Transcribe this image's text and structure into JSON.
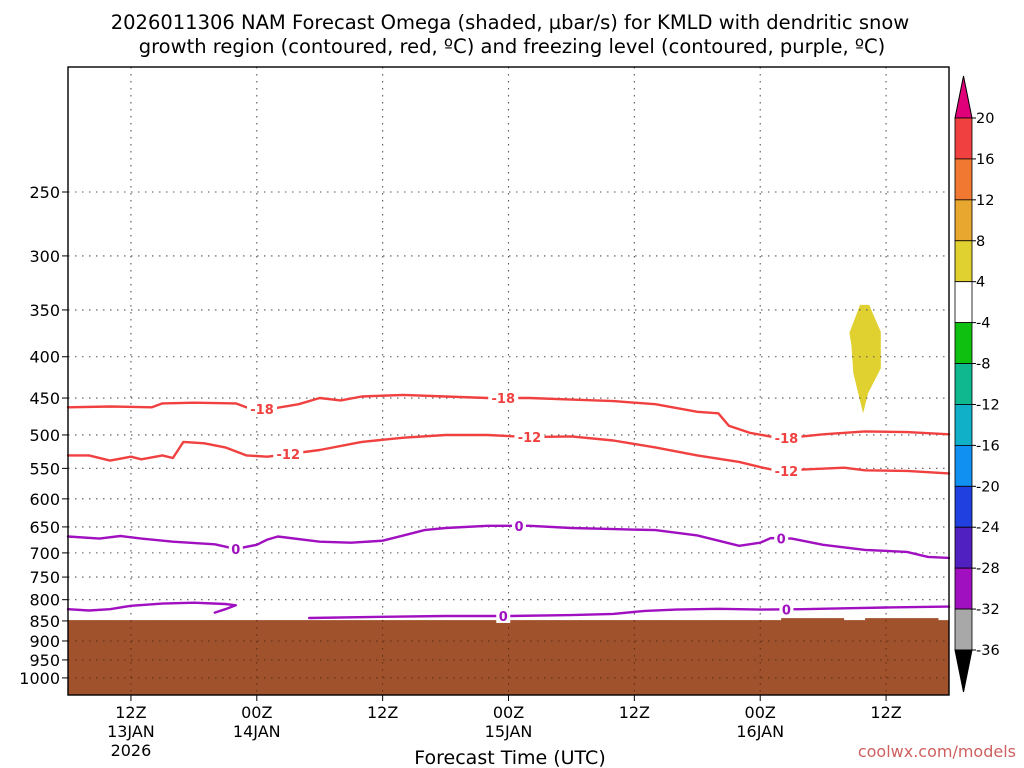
{
  "chart_data": {
    "type": "contour",
    "title_line1": "2026011306 NAM Forecast Omega (shaded, µbar/s) for KMLD with dendritic snow",
    "title_line2": "growth region (contoured, red, ºC) and freezing level (contoured, purple, ºC)",
    "xlabel": "Forecast Time (UTC)",
    "credit": "coolwx.com/models",
    "xlim_hours": [
      0,
      84
    ],
    "ylim_hpa": [
      1050,
      175
    ],
    "pressure_levels": [
      "250",
      "300",
      "350",
      "400",
      "450",
      "500",
      "550",
      "600",
      "650",
      "700",
      "750",
      "800",
      "850",
      "900",
      "950",
      "1000"
    ],
    "x_ticks": [
      {
        "hour": 6,
        "lines": [
          "12Z",
          "13JAN",
          "2026"
        ]
      },
      {
        "hour": 18,
        "lines": [
          "00Z",
          "14JAN"
        ]
      },
      {
        "hour": 30,
        "lines": [
          "12Z"
        ]
      },
      {
        "hour": 42,
        "lines": [
          "00Z",
          "15JAN"
        ]
      },
      {
        "hour": 54,
        "lines": [
          "12Z"
        ]
      },
      {
        "hour": 66,
        "lines": [
          "00Z",
          "16JAN"
        ]
      },
      {
        "hour": 78,
        "lines": [
          "12Z"
        ]
      }
    ],
    "colorbar": {
      "labels": [
        "20",
        "16",
        "12",
        "8",
        "4",
        "-4",
        "-8",
        "-12",
        "-16",
        "-20",
        "-24",
        "-28",
        "-32",
        "-36"
      ],
      "top_color": "#e0007a",
      "bottom_color": "#000000",
      "bins": [
        {
          "range": "16 to 20",
          "color": "#f04040"
        },
        {
          "range": "12 to 16",
          "color": "#f07830"
        },
        {
          "range": "8 to 12",
          "color": "#e8a830"
        },
        {
          "range": "4 to 8",
          "color": "#e0d030"
        },
        {
          "range": "-4 to 4",
          "color": "#ffffff"
        },
        {
          "range": "-8 to -4",
          "color": "#10c010"
        },
        {
          "range": "-12 to -8",
          "color": "#10b890"
        },
        {
          "range": "-16 to -12",
          "color": "#10b0c8"
        },
        {
          "range": "-20 to -16",
          "color": "#1090f0"
        },
        {
          "range": "-24 to -20",
          "color": "#2040e0"
        },
        {
          "range": "-28 to -24",
          "color": "#5020c0"
        },
        {
          "range": "-32 to -28",
          "color": "#a010c0"
        },
        {
          "range": "-36 to -32",
          "color": "#a8a8a8"
        }
      ]
    },
    "omega_features": [
      {
        "label": "4 to 8",
        "color": "#e0d030",
        "hour_range": [
          74.5,
          77.5
        ],
        "hpa_range": [
          345,
          470
        ]
      }
    ],
    "terrain": {
      "color": "#a0522d",
      "top_hpa": 848
    },
    "series": [
      {
        "name": "-18",
        "color": "#f04040",
        "points": [
          [
            0,
            462
          ],
          [
            4,
            461
          ],
          [
            8,
            462
          ],
          [
            9,
            457
          ],
          [
            12,
            456
          ],
          [
            16,
            457
          ],
          [
            17,
            462
          ],
          [
            19,
            465
          ],
          [
            22,
            458
          ],
          [
            24,
            450
          ],
          [
            26,
            453
          ],
          [
            28,
            448
          ],
          [
            32,
            446
          ],
          [
            36,
            448
          ],
          [
            40,
            450
          ],
          [
            44,
            450
          ],
          [
            48,
            452
          ],
          [
            52,
            454
          ],
          [
            56,
            458
          ],
          [
            60,
            468
          ],
          [
            62,
            470
          ],
          [
            63,
            487
          ],
          [
            65,
            497
          ],
          [
            68,
            505
          ],
          [
            70,
            502
          ],
          [
            72,
            499
          ],
          [
            76,
            495
          ],
          [
            80,
            496
          ],
          [
            84,
            499
          ]
        ],
        "labels": [
          {
            "hour": 18.5,
            "text": "-18"
          },
          {
            "hour": 41.5,
            "text": "-18"
          },
          {
            "hour": 68.5,
            "text": "-18"
          }
        ]
      },
      {
        "name": "-12",
        "color": "#f04040",
        "points": [
          [
            0,
            530
          ],
          [
            2,
            530
          ],
          [
            4,
            538
          ],
          [
            6,
            532
          ],
          [
            7,
            536
          ],
          [
            9,
            530
          ],
          [
            10,
            534
          ],
          [
            11,
            510
          ],
          [
            13,
            512
          ],
          [
            15,
            518
          ],
          [
            17,
            530
          ],
          [
            19,
            532
          ],
          [
            21,
            528
          ],
          [
            24,
            522
          ],
          [
            28,
            510
          ],
          [
            32,
            504
          ],
          [
            36,
            500
          ],
          [
            40,
            500
          ],
          [
            44,
            503
          ],
          [
            48,
            502
          ],
          [
            52,
            508
          ],
          [
            56,
            518
          ],
          [
            60,
            530
          ],
          [
            64,
            540
          ],
          [
            66,
            548
          ],
          [
            68,
            555
          ],
          [
            70,
            552
          ],
          [
            74,
            549
          ],
          [
            76,
            553
          ],
          [
            80,
            554
          ],
          [
            84,
            558
          ]
        ],
        "labels": [
          {
            "hour": 21,
            "text": "-12"
          },
          {
            "hour": 44,
            "text": "-12"
          },
          {
            "hour": 68.5,
            "text": "-12"
          }
        ]
      },
      {
        "name": "0",
        "color": "#a010c0",
        "points": [
          [
            0,
            668
          ],
          [
            3,
            672
          ],
          [
            5,
            667
          ],
          [
            7,
            672
          ],
          [
            10,
            678
          ],
          [
            14,
            683
          ],
          [
            16,
            692
          ],
          [
            18,
            684
          ],
          [
            19,
            674
          ],
          [
            20,
            668
          ],
          [
            24,
            678
          ],
          [
            27,
            680
          ],
          [
            30,
            676
          ],
          [
            32,
            666
          ],
          [
            34,
            656
          ],
          [
            36,
            652
          ],
          [
            40,
            648
          ],
          [
            44,
            648
          ],
          [
            48,
            652
          ],
          [
            52,
            654
          ],
          [
            56,
            656
          ],
          [
            60,
            666
          ],
          [
            64,
            686
          ],
          [
            66,
            680
          ],
          [
            67,
            671
          ],
          [
            69,
            672
          ],
          [
            72,
            684
          ],
          [
            76,
            694
          ],
          [
            80,
            698
          ],
          [
            82,
            708
          ],
          [
            84,
            710
          ]
        ],
        "labels": [
          {
            "hour": 16,
            "text": "0"
          },
          {
            "hour": 43,
            "text": "0"
          },
          {
            "hour": 68,
            "text": "0"
          }
        ]
      },
      {
        "name": "0",
        "color": "#a010c0",
        "points": [
          [
            0,
            822
          ],
          [
            2,
            825
          ],
          [
            4,
            822
          ],
          [
            6,
            814
          ],
          [
            9,
            809
          ],
          [
            12,
            807
          ],
          [
            15,
            810
          ],
          [
            16,
            813
          ],
          [
            15,
            822
          ],
          [
            14,
            830
          ]
        ],
        "labels": []
      },
      {
        "name": "0",
        "color": "#a010c0",
        "points": [
          [
            23,
            843
          ],
          [
            30,
            840
          ],
          [
            36,
            838
          ],
          [
            42,
            838
          ],
          [
            48,
            836
          ],
          [
            52,
            833
          ],
          [
            55,
            826
          ],
          [
            58,
            823
          ],
          [
            62,
            821
          ],
          [
            66,
            823
          ],
          [
            70,
            822
          ],
          [
            74,
            820
          ],
          [
            78,
            818
          ],
          [
            84,
            816
          ]
        ],
        "labels": [
          {
            "hour": 41.5,
            "text": "0"
          },
          {
            "hour": 68.5,
            "text": "0"
          }
        ]
      }
    ]
  }
}
